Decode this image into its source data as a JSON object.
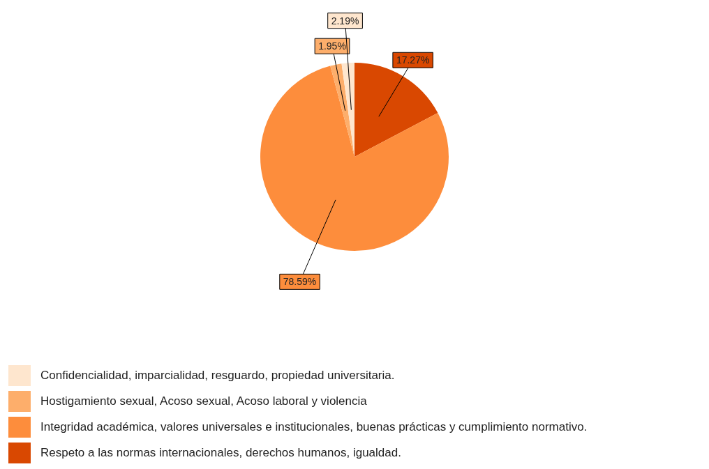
{
  "chart_data": {
    "type": "pie",
    "categories": [
      "Respeto a las normas internacionales, derechos humanos, igualdad.",
      "Integridad académica, valores universales e institucionales, buenas prácticas y cumplimiento normativo.",
      "Hostigamiento sexual, Acoso sexual, Acoso laboral y violencia",
      "Confidencialidad, imparcialidad, resguardo, propiedad universitaria."
    ],
    "values": [
      17.27,
      78.59,
      1.95,
      2.19
    ],
    "colors": [
      "#d94801",
      "#fd8d3c",
      "#fdae6b",
      "#fee6ce"
    ],
    "value_labels": [
      "17.27%",
      "78.59%",
      "1.95%",
      "2.19%"
    ],
    "legend": "bottom left"
  }
}
